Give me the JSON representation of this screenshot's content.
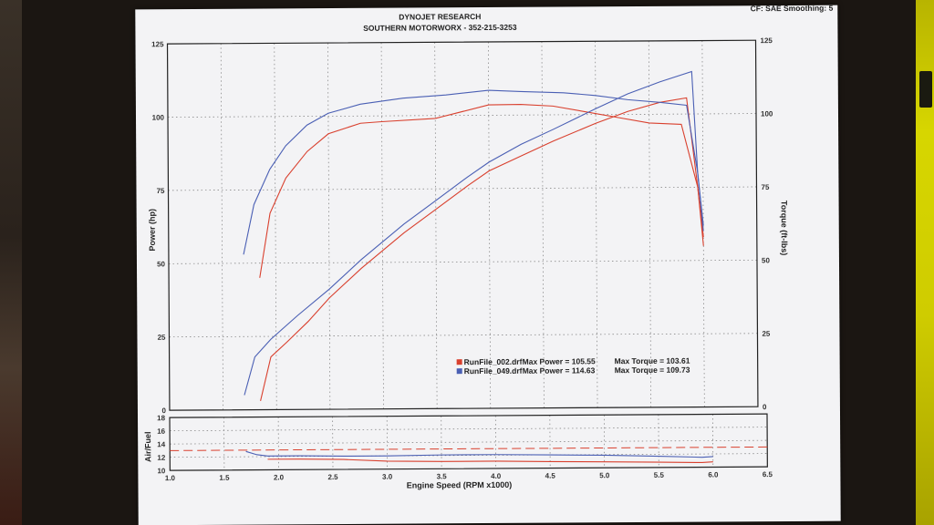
{
  "chart_data": [
    {
      "type": "line",
      "title": "DYNOJET RESEARCH",
      "subtitle": "SOUTHERN MOTORWORX - 352-215-3253",
      "settings_label": "CF: SAE  Smoothing: 5",
      "xlabel": "Engine Speed (RPM x1000)",
      "ylabel_left": "Power (hp)",
      "ylabel_right": "Torque (ft-lbs)",
      "xlim": [
        1.0,
        6.5
      ],
      "ylim_left": [
        0,
        125
      ],
      "ylim_right": [
        0,
        125
      ],
      "x_ticks": [
        "1.0",
        "1.5",
        "2.0",
        "2.5",
        "3.0",
        "3.5",
        "4.0",
        "4.5",
        "5.0",
        "5.5",
        "6.0",
        "6.5"
      ],
      "y_ticks_left": [
        "0",
        "25",
        "50",
        "75",
        "100",
        "125"
      ],
      "y_ticks_right": [
        "0",
        "25",
        "50",
        "75",
        "100",
        "125"
      ],
      "grid": true,
      "legend_position": "bottom-right",
      "runs": [
        {
          "file": "RunFile_002.drf",
          "color": "#d9402e",
          "max_power_label": "Max Power = 105.55",
          "max_torque_label": "Max Torque = 103.61",
          "power": {
            "x": [
              1.85,
              1.95,
              2.1,
              2.3,
              2.5,
              2.8,
              3.2,
              3.5,
              3.8,
              4.0,
              4.3,
              4.6,
              5.0,
              5.3,
              5.6,
              5.85,
              5.95,
              6.0
            ],
            "y": [
              3,
              18,
              23,
              30,
              38,
              48,
              60,
              68,
              76,
              81,
              86,
              91,
              97,
              101,
              104,
              105.5,
              75,
              55
            ]
          },
          "torque": {
            "x": [
              1.85,
              1.95,
              2.1,
              2.3,
              2.5,
              2.8,
              3.0,
              3.5,
              4.0,
              4.3,
              4.6,
              4.9,
              5.2,
              5.5,
              5.8,
              5.95,
              6.0
            ],
            "y": [
              45,
              67,
              79,
              88,
              94,
              97.5,
              98,
              99,
              103.5,
              103.6,
              103,
              101,
              99,
              97,
              96.5,
              75,
              58
            ]
          }
        },
        {
          "file": "RunFile_049.drf",
          "color": "#4a5fb4",
          "max_power_label": "Max Power = 114.63",
          "max_torque_label": "Max Torque = 109.73",
          "power": {
            "x": [
              1.7,
              1.8,
              1.95,
              2.2,
              2.5,
              2.8,
              3.2,
              3.5,
              3.8,
              4.0,
              4.3,
              4.6,
              5.0,
              5.3,
              5.6,
              5.9,
              5.95,
              6.0
            ],
            "y": [
              5,
              18,
              24,
              32,
              41,
              51,
              63,
              71,
              79,
              84,
              90,
              95,
              102,
              107,
              111,
              114.5,
              80,
              60
            ]
          },
          "torque": {
            "x": [
              1.7,
              1.8,
              1.95,
              2.1,
              2.3,
              2.5,
              2.8,
              3.2,
              3.6,
              4.0,
              4.3,
              4.7,
              5.0,
              5.3,
              5.6,
              5.85,
              5.95,
              6.0
            ],
            "y": [
              53,
              70,
              82,
              90,
              97,
              101,
              104,
              106,
              107,
              108.5,
              108,
              107.5,
              106.5,
              105,
              104,
              103,
              80,
              62
            ]
          }
        }
      ]
    },
    {
      "type": "line",
      "ylabel": "Air/Fuel",
      "xlim": [
        1.0,
        6.5
      ],
      "ylim": [
        10,
        18
      ],
      "y_ticks": [
        "10",
        "12",
        "14",
        "16",
        "18"
      ],
      "reference_line": 13,
      "series": [
        {
          "color": "#d9402e",
          "x": [
            1.9,
            2.2,
            2.6,
            3.0,
            3.5,
            4.0,
            4.5,
            5.0,
            5.5,
            5.9,
            6.0
          ],
          "y": [
            11.6,
            11.6,
            11.5,
            11.2,
            11.1,
            11.1,
            11.0,
            10.9,
            10.8,
            10.7,
            10.8
          ]
        },
        {
          "color": "#4a5fb4",
          "x": [
            1.7,
            1.8,
            1.9,
            2.2,
            2.6,
            3.0,
            3.5,
            4.0,
            4.5,
            5.0,
            5.5,
            5.9,
            6.0
          ],
          "y": [
            12.8,
            12.3,
            12.1,
            12.1,
            12.0,
            12.0,
            12.1,
            12.1,
            12.0,
            11.9,
            11.7,
            11.5,
            11.6
          ]
        }
      ]
    }
  ]
}
